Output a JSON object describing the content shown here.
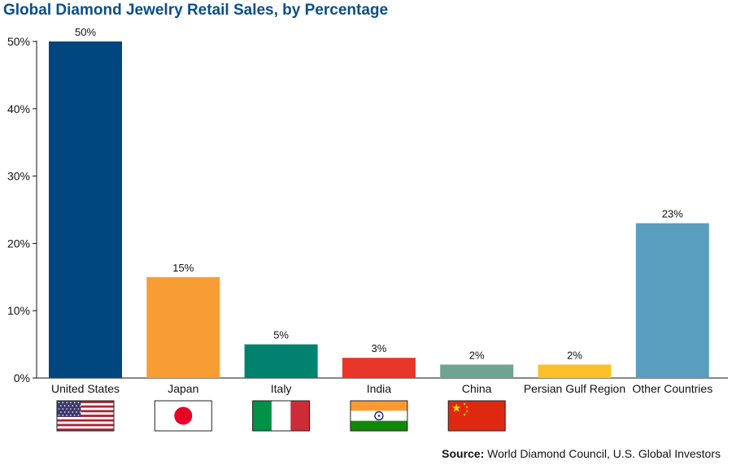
{
  "chart_data": {
    "type": "bar",
    "title": "Global Diamond Jewelry Retail Sales, by Percentage",
    "categories": [
      "United States",
      "Japan",
      "Italy",
      "India",
      "China",
      "Persian Gulf Region",
      "Other Countries"
    ],
    "values": [
      50,
      15,
      5,
      3,
      2,
      2,
      23
    ],
    "data_labels": [
      "50%",
      "15%",
      "5%",
      "3%",
      "2%",
      "2%",
      "23%"
    ],
    "bar_colors": [
      "#00467f",
      "#f89d33",
      "#00826e",
      "#e8352a",
      "#6fa393",
      "#fdc02a",
      "#5a9ebf"
    ],
    "flags": [
      "us-flag-icon",
      "japan-flag-icon",
      "italy-flag-icon",
      "india-flag-icon",
      "china-flag-icon",
      "",
      ""
    ],
    "ylim": [
      0,
      50
    ],
    "yticks": [
      0,
      10,
      20,
      30,
      40,
      50
    ],
    "ytick_labels": [
      "0%",
      "10%",
      "20%",
      "30%",
      "40%",
      "50%"
    ],
    "xlabel": "",
    "ylabel": "",
    "grid": false
  },
  "source": {
    "label": "Source:",
    "text": " World Diamond Council, U.S. Global Investors"
  }
}
